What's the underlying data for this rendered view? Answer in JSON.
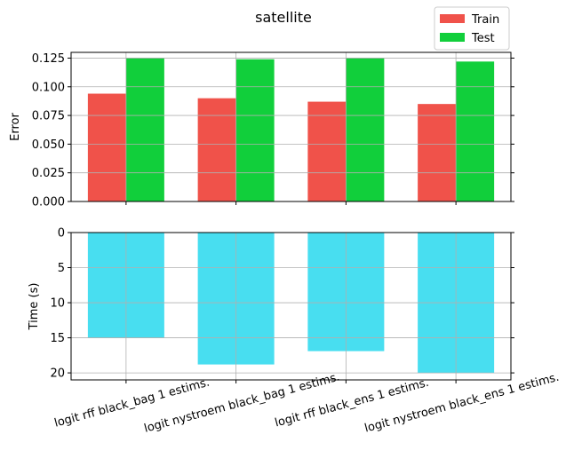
{
  "chart_data": {
    "type": "bar",
    "title": "satellite",
    "categories": [
      "logit rff black_bag 1 estims.",
      "logit nystroem black_bag 1 estims.",
      "logit rff black_ens 1 estims.",
      "logit nystroem black_ens 1 estims."
    ],
    "colors": {
      "train": "#f0524a",
      "test": "#11cf3b",
      "time": "#48def0",
      "grid": "#b0b0b0"
    },
    "panels": [
      {
        "name": "error",
        "ylabel": "Error",
        "ylim": [
          0,
          0.13
        ],
        "yticks": [
          "0.000",
          "0.025",
          "0.050",
          "0.075",
          "0.100",
          "0.125"
        ],
        "series": [
          {
            "name": "Train",
            "values": [
              0.094,
              0.09,
              0.087,
              0.085
            ]
          },
          {
            "name": "Test",
            "values": [
              0.125,
              0.124,
              0.125,
              0.122
            ]
          }
        ],
        "legend": {
          "position": "top-right",
          "entries": [
            "Train",
            "Test"
          ]
        },
        "grid": true
      },
      {
        "name": "time",
        "ylabel": "Time (s)",
        "ylim": [
          21,
          0
        ],
        "inverted": true,
        "yticks": [
          "0",
          "5",
          "10",
          "15",
          "20"
        ],
        "series": [
          {
            "name": "Time",
            "values": [
              15.0,
              18.8,
              16.9,
              20.0
            ]
          }
        ],
        "grid": true
      }
    ]
  }
}
